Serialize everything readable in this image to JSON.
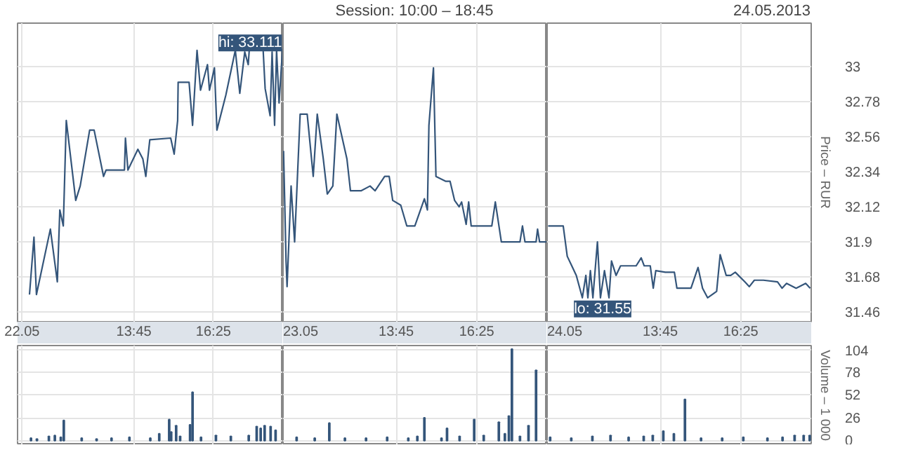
{
  "chart_data": [
    {
      "type": "line",
      "color": "#34557a",
      "tick_labels": "x",
      "annotations": [
        {
          "text": "hi: 33.111",
          "x": "2013-05-22T18:37",
          "y": 33.111
        }
      ],
      "x": [
        "2013-05-22T10:15",
        "2013-05-22T10:24",
        "2013-05-22T10:29",
        "2013-05-22T10:57",
        "2013-05-22T11:11",
        "2013-05-22T11:16",
        "2013-05-22T11:23",
        "2013-05-22T11:29",
        "2013-05-22T11:48",
        "2013-05-22T11:57",
        "2013-05-22T12:16",
        "2013-05-22T12:25",
        "2013-05-22T12:44",
        "2013-05-22T12:49",
        "2013-05-22T13:26",
        "2013-05-22T13:28",
        "2013-05-22T13:33",
        "2013-05-22T13:53",
        "2013-05-22T14:03",
        "2013-05-22T14:09",
        "2013-05-22T14:17",
        "2013-05-22T14:59",
        "2013-05-22T15:06",
        "2013-05-22T15:13",
        "2013-05-22T15:14",
        "2013-05-22T15:36",
        "2013-05-22T15:43",
        "2013-05-22T15:52",
        "2013-05-22T15:59",
        "2013-05-22T16:13",
        "2013-05-22T16:17",
        "2013-05-22T16:27",
        "2013-05-22T16:32",
        "2013-05-22T16:50",
        "2013-05-22T17:09",
        "2013-05-22T17:18",
        "2013-05-22T17:28",
        "2013-05-22T17:35",
        "2013-05-22T17:37",
        "2013-05-22T18:05",
        "2013-05-22T18:09",
        "2013-05-22T18:19",
        "2013-05-22T18:23",
        "2013-05-22T18:28",
        "2013-05-22T18:32",
        "2013-05-22T18:37",
        "2013-05-22T18:44"
      ],
      "values": [
        31.57,
        31.93,
        31.57,
        31.98,
        31.65,
        32.1,
        32.0,
        32.66,
        32.16,
        32.25,
        32.6,
        32.6,
        32.31,
        32.35,
        32.35,
        32.55,
        32.35,
        32.48,
        32.42,
        32.31,
        32.54,
        32.55,
        32.45,
        32.66,
        32.9,
        32.9,
        32.63,
        33.1,
        32.85,
        33.01,
        32.85,
        32.99,
        32.6,
        32.82,
        33.1,
        32.83,
        33.09,
        33.01,
        33.1,
        33.1,
        32.86,
        32.69,
        33.09,
        32.63,
        33.1,
        32.77,
        33.11
      ],
      "xlim": [
        "2013-05-22T09:51",
        "2013-05-22T18:45"
      ],
      "ylim": [
        31.4,
        33.27
      ],
      "xticks": [
        {
          "value": "2013-05-22T10:00",
          "label": "22.05"
        },
        {
          "value": "2013-05-22T13:45",
          "label": "13:45"
        },
        {
          "value": "2013-05-22T16:25",
          "label": "16:25"
        }
      ],
      "yticks": [
        31.46,
        31.68,
        31.9,
        32.12,
        32.34,
        32.56,
        32.78,
        33
      ],
      "grid": true,
      "line_style": "solid"
    },
    {
      "type": "line",
      "title": "Session: 10:00 – 18:45",
      "color": "#34557a",
      "tick_labels": "x",
      "x": [
        "2013-05-23T10:01",
        "2013-05-23T10:06",
        "2013-05-23T10:08",
        "2013-05-23T10:16",
        "2013-05-23T10:23",
        "2013-05-23T10:34",
        "2013-05-23T10:48",
        "2013-05-23T11:00",
        "2013-05-23T11:08",
        "2013-05-23T11:20",
        "2013-05-23T11:28",
        "2013-05-23T11:39",
        "2013-05-23T11:47",
        "2013-05-23T12:07",
        "2013-05-23T12:14",
        "2013-05-23T12:35",
        "2013-05-23T12:53",
        "2013-05-23T13:03",
        "2013-05-23T13:22",
        "2013-05-23T13:31",
        "2013-05-23T13:38",
        "2013-05-23T13:54",
        "2013-05-23T14:06",
        "2013-05-23T14:22",
        "2013-05-23T14:41",
        "2013-05-23T14:47",
        "2013-05-23T14:50",
        "2013-05-23T14:59",
        "2013-05-23T15:04",
        "2013-05-23T15:23",
        "2013-05-23T15:32",
        "2013-05-23T15:41",
        "2013-05-23T15:50",
        "2013-05-23T15:55",
        "2013-05-23T16:04",
        "2013-05-23T16:09",
        "2013-05-23T16:14",
        "2013-05-23T16:55",
        "2013-05-23T17:02",
        "2013-05-23T17:14",
        "2013-05-23T17:51",
        "2013-05-23T17:56",
        "2013-05-23T18:01",
        "2013-05-23T18:23",
        "2013-05-23T18:26",
        "2013-05-23T18:30",
        "2013-05-23T18:44"
      ],
      "values": [
        32.47,
        31.78,
        31.62,
        32.25,
        31.9,
        32.7,
        32.7,
        32.31,
        32.7,
        32.42,
        32.2,
        32.25,
        32.7,
        32.42,
        32.22,
        32.22,
        32.25,
        32.22,
        32.31,
        32.31,
        32.16,
        32.13,
        32.0,
        32.0,
        32.17,
        32.1,
        32.63,
        32.99,
        32.31,
        32.28,
        32.28,
        32.16,
        32.12,
        32.15,
        32.01,
        32.15,
        32.0,
        32.0,
        32.15,
        31.9,
        31.9,
        32.0,
        31.9,
        31.9,
        31.98,
        31.9,
        31.9
      ],
      "xlim": [
        "2013-05-23T10:00",
        "2013-05-23T18:45"
      ],
      "ylim": [
        31.4,
        33.27
      ],
      "xticks": [
        {
          "value": "2013-05-23T10:00",
          "label": "23.05"
        },
        {
          "value": "2013-05-23T13:45",
          "label": "13:45"
        },
        {
          "value": "2013-05-23T16:25",
          "label": "16:25"
        }
      ],
      "yticks": [
        31.46,
        31.68,
        31.9,
        32.12,
        32.34,
        32.56,
        32.78,
        33
      ],
      "grid": true,
      "line_style": "solid"
    },
    {
      "type": "line",
      "ylabel": "Price – RUR",
      "color": "#34557a",
      "annotations": [
        "24.05.2013",
        {
          "text": "lo: 31.55",
          "x": "2013-05-24T11:10",
          "y": 31.55
        }
      ],
      "x": [
        "2013-05-24T10:02",
        "2013-05-24T10:32",
        "2013-05-24T10:40",
        "2013-05-24T10:49",
        "2013-05-24T10:58",
        "2013-05-24T11:10",
        "2013-05-24T11:17",
        "2013-05-24T11:21",
        "2013-05-24T11:26",
        "2013-05-24T11:31",
        "2013-05-24T11:40",
        "2013-05-24T11:46",
        "2013-05-24T11:54",
        "2013-05-24T12:03",
        "2013-05-24T12:08",
        "2013-05-24T12:17",
        "2013-05-24T12:26",
        "2013-05-24T12:31",
        "2013-05-24T12:57",
        "2013-05-24T13:07",
        "2013-05-24T13:13",
        "2013-05-24T13:25",
        "2013-05-24T13:31",
        "2013-05-24T13:36",
        "2013-05-24T13:55",
        "2013-05-24T14:13",
        "2013-05-24T14:18",
        "2013-05-24T14:46",
        "2013-05-24T15:00",
        "2013-05-24T15:09",
        "2013-05-24T15:19",
        "2013-05-24T15:37",
        "2013-05-24T15:44",
        "2013-05-24T15:56",
        "2013-05-24T16:05",
        "2013-05-24T16:14",
        "2013-05-24T16:33",
        "2013-05-24T16:42",
        "2013-05-24T16:52",
        "2013-05-24T17:10",
        "2013-05-24T17:38",
        "2013-05-24T17:47",
        "2013-05-24T17:56",
        "2013-05-24T18:15",
        "2013-05-24T18:34",
        "2013-05-24T18:43"
      ],
      "values": [
        32.0,
        32.0,
        31.81,
        31.75,
        31.69,
        31.55,
        31.69,
        31.55,
        31.72,
        31.55,
        31.9,
        31.55,
        31.72,
        31.55,
        31.78,
        31.69,
        31.75,
        31.75,
        31.75,
        31.8,
        31.75,
        31.75,
        31.61,
        31.72,
        31.71,
        31.71,
        31.61,
        31.61,
        31.74,
        31.61,
        31.55,
        31.59,
        31.82,
        31.69,
        31.69,
        31.71,
        31.65,
        31.62,
        31.66,
        31.66,
        31.65,
        31.61,
        31.64,
        31.61,
        31.64,
        31.61
      ],
      "xlim": [
        "2013-05-24T10:00",
        "2013-05-24T18:45"
      ],
      "ylim": [
        31.4,
        33.27
      ],
      "xticks": [
        {
          "value": "2013-05-24T10:00",
          "label": "24.05"
        },
        {
          "value": "2013-05-24T13:45",
          "label": "13:45"
        },
        {
          "value": "2013-05-24T16:25",
          "label": "16:25"
        }
      ],
      "yticks": [
        31.46,
        31.68,
        31.9,
        32.12,
        32.34,
        32.56,
        32.78,
        33
      ],
      "grid": true,
      "line_style": "solid"
    },
    {
      "type": "bar",
      "color": "#34557a",
      "tick_labels": false,
      "x": [
        "2013-05-22T10:18",
        "2013-05-22T10:30",
        "2013-05-22T10:54",
        "2013-05-22T11:06",
        "2013-05-22T11:18",
        "2013-05-22T11:24",
        "2013-05-22T12:00",
        "2013-05-22T12:30",
        "2013-05-22T13:00",
        "2013-05-22T13:36",
        "2013-05-22T14:18",
        "2013-05-22T14:36",
        "2013-05-22T14:56",
        "2013-05-22T15:00",
        "2013-05-22T15:10",
        "2013-05-22T15:18",
        "2013-05-22T15:38",
        "2013-05-22T15:43",
        "2013-05-22T16:00",
        "2013-05-22T16:30",
        "2013-05-22T17:00",
        "2013-05-22T17:36",
        "2013-05-22T17:52",
        "2013-05-22T18:00",
        "2013-05-22T18:08",
        "2013-05-22T18:20",
        "2013-05-22T18:30"
      ],
      "values": [
        3,
        2,
        5,
        6,
        4,
        23,
        3,
        2,
        3,
        4,
        3,
        8,
        24,
        10,
        17,
        5,
        18,
        55,
        4,
        6,
        5,
        6,
        16,
        14,
        17,
        16,
        12
      ],
      "xlim": [
        "2013-05-22T09:51",
        "2013-05-22T18:45"
      ],
      "ylim": [
        -5,
        108
      ],
      "xticks": [
        "2013-05-22T10:00",
        "2013-05-22T13:45",
        "2013-05-22T16:25"
      ],
      "yticks": [
        0,
        26,
        52,
        78,
        104
      ],
      "grid": true
    },
    {
      "type": "bar",
      "color": "#34557a",
      "tick_labels": false,
      "x": [
        "2013-05-23T10:27",
        "2013-05-23T11:03",
        "2013-05-23T11:32",
        "2013-05-23T12:03",
        "2013-05-23T12:45",
        "2013-05-23T13:27",
        "2013-05-23T14:09",
        "2013-05-23T14:27",
        "2013-05-23T14:41",
        "2013-05-23T15:15",
        "2013-05-23T15:26",
        "2013-05-23T15:51",
        "2013-05-23T16:20",
        "2013-05-23T16:39",
        "2013-05-23T17:09",
        "2013-05-23T17:21",
        "2013-05-23T17:29",
        "2013-05-23T17:35",
        "2013-05-23T17:51",
        "2013-05-23T18:08",
        "2013-05-23T18:23"
      ],
      "values": [
        4,
        3,
        20,
        3,
        3,
        4,
        3,
        5,
        26,
        3,
        14,
        5,
        24,
        6,
        21,
        8,
        28,
        104,
        5,
        17,
        80
      ],
      "xlim": [
        "2013-05-23T10:00",
        "2013-05-23T18:45"
      ],
      "ylim": [
        -5,
        108
      ],
      "xticks": [
        "2013-05-23T10:00",
        "2013-05-23T13:45",
        "2013-05-23T16:25"
      ],
      "yticks": [
        0,
        26,
        52,
        78,
        104
      ],
      "grid": true
    },
    {
      "type": "bar",
      "ylabel": "Volume – 1 000",
      "color": "#34557a",
      "tick_labels": "y",
      "x": [
        "2013-05-24T10:06",
        "2013-05-24T10:48",
        "2013-05-24T11:30",
        "2013-05-24T12:06",
        "2013-05-24T12:42",
        "2013-05-24T13:12",
        "2013-05-24T13:30",
        "2013-05-24T13:51",
        "2013-05-24T14:12",
        "2013-05-24T14:34",
        "2013-05-24T15:06",
        "2013-05-24T15:48",
        "2013-05-24T16:30",
        "2013-05-24T17:18",
        "2013-05-24T17:48",
        "2013-05-24T18:12",
        "2013-05-24T18:30",
        "2013-05-24T18:42"
      ],
      "values": [
        4,
        3,
        5,
        6,
        4,
        5,
        6,
        11,
        8,
        47,
        3,
        3,
        4,
        3,
        4,
        6,
        6,
        6
      ],
      "xlim": [
        "2013-05-24T10:00",
        "2013-05-24T18:45"
      ],
      "ylim": [
        -5,
        108
      ],
      "xticks": [
        "2013-05-24T10:00",
        "2013-05-24T13:45",
        "2013-05-24T16:25"
      ],
      "yticks": [
        0,
        26,
        52,
        78,
        104
      ],
      "grid": true
    }
  ]
}
